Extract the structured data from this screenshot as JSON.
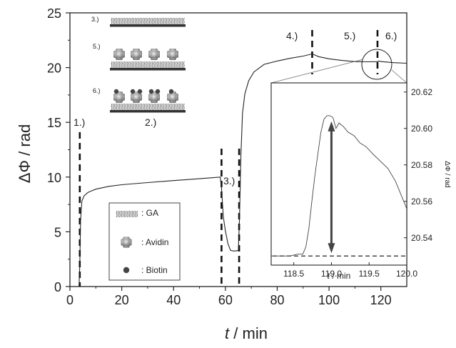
{
  "chart_data": [
    {
      "type": "line",
      "xlabel_var": "t",
      "xlabel_unit": " / min",
      "ylabel": "ΔΦ / rad",
      "xlim": [
        0,
        130
      ],
      "ylim": [
        0,
        25
      ],
      "xticks": [
        0,
        20,
        40,
        60,
        80,
        100,
        120
      ],
      "xtick_labels": [
        "0",
        "20",
        "40",
        "60",
        "80",
        "100",
        "120"
      ],
      "yticks": [
        0,
        5,
        10,
        15,
        20,
        25
      ],
      "ytick_labels": [
        "0",
        "5",
        "10",
        "15",
        "20",
        "25"
      ],
      "series": [
        {
          "x": [
            0,
            3.5,
            3.8,
            4.1,
            4.6,
            5.5,
            7,
            10,
            15,
            20,
            30,
            40,
            50,
            58,
            58.5,
            59.2,
            60,
            61,
            62,
            63,
            64,
            65,
            65.4,
            66,
            66.6,
            67.5,
            69,
            71,
            75,
            80,
            85,
            90,
            93.5,
            96,
            100,
            105,
            110,
            115,
            118.7,
            119,
            119.5,
            120.5,
            125,
            130
          ],
          "y": [
            0,
            0,
            2,
            6,
            7.8,
            8.3,
            8.6,
            8.9,
            9.15,
            9.3,
            9.5,
            9.68,
            9.85,
            10.0,
            9.0,
            6.4,
            5.1,
            3.9,
            3.3,
            3.25,
            3.25,
            3.3,
            6,
            12,
            15.8,
            17.6,
            18.8,
            19.6,
            20.3,
            20.6,
            20.85,
            21.05,
            21.25,
            21.0,
            20.8,
            20.65,
            20.55,
            20.53,
            20.54,
            20.6,
            20.58,
            20.54,
            20.45,
            20.4
          ]
        }
      ],
      "phase_markers": [
        {
          "label": "1.)",
          "x": 3.8
        },
        {
          "label": "2.)"
        },
        {
          "label": "3.)",
          "x": 58.5
        },
        {
          "label": "3.)",
          "x": 65.3
        },
        {
          "label": "4.)",
          "x": 93.5
        },
        {
          "label": "5.)"
        },
        {
          "label": "6.)",
          "x": 118.7
        }
      ],
      "phase_label_texts": [
        "1.)",
        "2.)",
        "3.)",
        "4.)",
        "5.)",
        "6.)"
      ],
      "grid": false
    },
    {
      "type": "line",
      "xlabel_var": "t",
      "xlabel_unit": " / min",
      "ylabel": "ΔΦ / rad",
      "xlim": [
        118.2,
        120.0
      ],
      "ylim": [
        20.525,
        20.625
      ],
      "xticks": [
        118.5,
        119.0,
        119.5,
        120.0
      ],
      "xtick_labels": [
        "118.5",
        "119.0",
        "119.5",
        "120.0"
      ],
      "yticks": [
        20.54,
        20.56,
        20.58,
        20.6,
        20.62
      ],
      "ytick_labels": [
        "20.54",
        "20.56",
        "20.58",
        "20.60",
        "20.62"
      ],
      "series": [
        {
          "x": [
            118.2,
            118.45,
            118.55,
            118.62,
            118.66,
            118.7,
            118.74,
            118.78,
            118.82,
            118.86,
            118.9,
            118.94,
            118.98,
            119.02,
            119.06,
            119.1,
            119.16,
            119.22,
            119.3,
            119.38,
            119.46,
            119.55,
            119.65,
            119.75,
            119.85,
            119.93,
            120.0
          ],
          "y": [
            20.53,
            20.53,
            20.531,
            20.531,
            20.535,
            20.545,
            20.56,
            20.574,
            20.586,
            20.598,
            20.605,
            20.607,
            20.607,
            20.606,
            20.6,
            20.603,
            20.601,
            20.598,
            20.596,
            20.592,
            20.59,
            20.586,
            20.582,
            20.578,
            20.571,
            20.563,
            20.556
          ]
        }
      ],
      "baseline_y": 20.53,
      "arrow": {
        "x": 119.0,
        "y_from": 20.53,
        "y_to": 20.607
      }
    }
  ],
  "legend": {
    "items": [
      {
        "icon": "glutaraldehyde-zigzag-icon",
        "label": ": GA"
      },
      {
        "icon": "avidin-protein-icon",
        "label": ": Avidin"
      },
      {
        "icon": "biotin-dot-icon",
        "label": ": Biotin"
      }
    ]
  },
  "schematic": {
    "steps": [
      "3.)",
      "5.)",
      "6.)"
    ]
  }
}
